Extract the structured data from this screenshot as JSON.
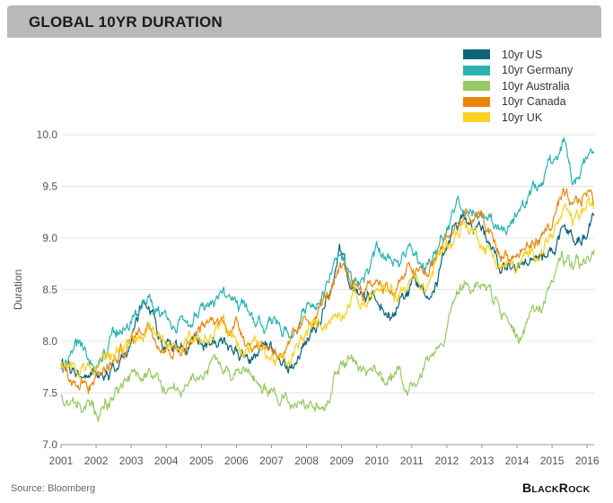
{
  "title": "GLOBAL 10YR DURATION",
  "source": "Source: Bloomberg",
  "brand": {
    "b": "B",
    "lack": "LACK",
    "r": "R",
    "ock": "OCK"
  },
  "chart_data": {
    "type": "line",
    "ylabel": "Duration",
    "xlabel": "",
    "ylim": [
      7.0,
      10.0
    ],
    "xlim": [
      2001,
      2016.2
    ],
    "yticks": [
      "7.0",
      "7.5",
      "8.0",
      "8.5",
      "9.0",
      "9.5",
      "10.0"
    ],
    "xticks": [
      "2001",
      "2002",
      "2003",
      "2004",
      "2005",
      "2006",
      "2007",
      "2008",
      "2009",
      "2010",
      "2011",
      "2012",
      "2013",
      "2014",
      "2015",
      "2016"
    ],
    "grid": "horizontal",
    "legend_position": "top-right",
    "series": [
      {
        "name": "10yr US",
        "color": "#0b6478",
        "points": [
          [
            2001,
            7.75
          ],
          [
            2001.5,
            7.65
          ],
          [
            2002,
            7.7
          ],
          [
            2002.5,
            7.8
          ],
          [
            2003,
            8.0
          ],
          [
            2003.3,
            8.3
          ],
          [
            2003.6,
            8.2
          ],
          [
            2004,
            8.0
          ],
          [
            2004.5,
            7.9
          ],
          [
            2005,
            8.0
          ],
          [
            2005.5,
            7.95
          ],
          [
            2006,
            7.9
          ],
          [
            2006.5,
            7.85
          ],
          [
            2007,
            7.8
          ],
          [
            2007.5,
            7.7
          ],
          [
            2008,
            8.0
          ],
          [
            2008.5,
            8.3
          ],
          [
            2008.95,
            8.8
          ],
          [
            2009.3,
            8.5
          ],
          [
            2009.6,
            8.4
          ],
          [
            2010,
            8.4
          ],
          [
            2010.5,
            8.3
          ],
          [
            2011,
            8.55
          ],
          [
            2011.4,
            8.55
          ],
          [
            2011.7,
            8.65
          ],
          [
            2012,
            8.9
          ],
          [
            2012.5,
            9.2
          ],
          [
            2013,
            9.1
          ],
          [
            2013.3,
            8.95
          ],
          [
            2013.5,
            8.75
          ],
          [
            2014,
            8.7
          ],
          [
            2014.5,
            8.75
          ],
          [
            2015,
            8.85
          ],
          [
            2015.3,
            9.0
          ],
          [
            2015.6,
            8.95
          ],
          [
            2016,
            9.0
          ],
          [
            2016.2,
            9.15
          ]
        ]
      },
      {
        "name": "10yr Germany",
        "color": "#2ab3b1",
        "points": [
          [
            2001,
            7.8
          ],
          [
            2001.5,
            7.9
          ],
          [
            2002,
            7.8
          ],
          [
            2002.5,
            8.0
          ],
          [
            2003,
            8.2
          ],
          [
            2003.5,
            8.4
          ],
          [
            2004,
            8.2
          ],
          [
            2004.5,
            8.15
          ],
          [
            2005,
            8.3
          ],
          [
            2005.5,
            8.5
          ],
          [
            2006,
            8.4
          ],
          [
            2006.5,
            8.2
          ],
          [
            2007,
            8.1
          ],
          [
            2007.5,
            8.05
          ],
          [
            2008,
            8.3
          ],
          [
            2008.5,
            8.5
          ],
          [
            2008.95,
            8.95
          ],
          [
            2009.3,
            8.6
          ],
          [
            2009.6,
            8.55
          ],
          [
            2010,
            8.8
          ],
          [
            2010.5,
            8.7
          ],
          [
            2011,
            8.9
          ],
          [
            2011.4,
            8.75
          ],
          [
            2011.7,
            8.9
          ],
          [
            2012,
            9.15
          ],
          [
            2012.5,
            9.35
          ],
          [
            2013,
            9.3
          ],
          [
            2013.5,
            9.05
          ],
          [
            2014,
            9.2
          ],
          [
            2014.5,
            9.45
          ],
          [
            2015,
            9.75
          ],
          [
            2015.3,
            9.95
          ],
          [
            2015.6,
            9.6
          ],
          [
            2016,
            9.8
          ],
          [
            2016.2,
            9.95
          ]
        ]
      },
      {
        "name": "10yr Australia",
        "color": "#96c965",
        "points": [
          [
            2001,
            7.5
          ],
          [
            2001.5,
            7.4
          ],
          [
            2002,
            7.3
          ],
          [
            2002.5,
            7.5
          ],
          [
            2003,
            7.6
          ],
          [
            2003.5,
            7.7
          ],
          [
            2004,
            7.55
          ],
          [
            2004.5,
            7.5
          ],
          [
            2005,
            7.7
          ],
          [
            2005.5,
            7.8
          ],
          [
            2006,
            7.7
          ],
          [
            2006.5,
            7.6
          ],
          [
            2007,
            7.55
          ],
          [
            2007.5,
            7.45
          ],
          [
            2008,
            7.4
          ],
          [
            2008.5,
            7.25
          ],
          [
            2008.95,
            7.8
          ],
          [
            2009.3,
            7.9
          ],
          [
            2009.6,
            7.7
          ],
          [
            2010,
            7.65
          ],
          [
            2010.5,
            7.6
          ],
          [
            2011,
            7.6
          ],
          [
            2011.4,
            7.75
          ],
          [
            2011.7,
            7.9
          ],
          [
            2012,
            8.2
          ],
          [
            2012.5,
            8.6
          ],
          [
            2013,
            8.5
          ],
          [
            2013.5,
            8.3
          ],
          [
            2014,
            8.05
          ],
          [
            2014.5,
            8.2
          ],
          [
            2015,
            8.6
          ],
          [
            2015.3,
            8.75
          ],
          [
            2015.6,
            8.65
          ],
          [
            2016,
            8.75
          ],
          [
            2016.2,
            8.85
          ]
        ]
      },
      {
        "name": "10yr Canada",
        "color": "#e8860e",
        "points": [
          [
            2001,
            7.7
          ],
          [
            2001.5,
            7.6
          ],
          [
            2002,
            7.65
          ],
          [
            2002.5,
            7.8
          ],
          [
            2003,
            8.0
          ],
          [
            2003.5,
            8.2
          ],
          [
            2004,
            8.0
          ],
          [
            2004.5,
            7.95
          ],
          [
            2005,
            8.1
          ],
          [
            2005.5,
            8.2
          ],
          [
            2006,
            8.15
          ],
          [
            2006.5,
            8.0
          ],
          [
            2007,
            7.95
          ],
          [
            2007.5,
            7.9
          ],
          [
            2008,
            8.15
          ],
          [
            2008.5,
            8.4
          ],
          [
            2008.95,
            8.6
          ],
          [
            2009.3,
            8.55
          ],
          [
            2009.6,
            8.5
          ],
          [
            2010,
            8.6
          ],
          [
            2010.5,
            8.5
          ],
          [
            2011,
            8.7
          ],
          [
            2011.4,
            8.6
          ],
          [
            2011.7,
            8.8
          ],
          [
            2012,
            9.0
          ],
          [
            2012.5,
            9.2
          ],
          [
            2013,
            9.15
          ],
          [
            2013.5,
            8.85
          ],
          [
            2014,
            8.85
          ],
          [
            2014.5,
            8.95
          ],
          [
            2015,
            9.15
          ],
          [
            2015.3,
            9.35
          ],
          [
            2015.6,
            9.2
          ],
          [
            2016,
            9.45
          ],
          [
            2016.2,
            9.35
          ]
        ]
      },
      {
        "name": "10yr UK",
        "color": "#fad022",
        "points": [
          [
            2001,
            7.8
          ],
          [
            2001.5,
            7.75
          ],
          [
            2002,
            7.7
          ],
          [
            2002.5,
            7.85
          ],
          [
            2003,
            8.05
          ],
          [
            2003.5,
            8.1
          ],
          [
            2004,
            7.95
          ],
          [
            2004.5,
            7.9
          ],
          [
            2005,
            8.0
          ],
          [
            2005.5,
            8.1
          ],
          [
            2006,
            8.0
          ],
          [
            2006.5,
            7.9
          ],
          [
            2007,
            7.85
          ],
          [
            2007.5,
            7.75
          ],
          [
            2008,
            8.05
          ],
          [
            2008.5,
            8.2
          ],
          [
            2008.95,
            8.3
          ],
          [
            2009.3,
            8.5
          ],
          [
            2009.6,
            8.35
          ],
          [
            2010,
            8.5
          ],
          [
            2010.5,
            8.4
          ],
          [
            2011,
            8.6
          ],
          [
            2011.4,
            8.5
          ],
          [
            2011.7,
            8.75
          ],
          [
            2012,
            8.95
          ],
          [
            2012.5,
            9.15
          ],
          [
            2013,
            9.0
          ],
          [
            2013.5,
            8.75
          ],
          [
            2014,
            8.7
          ],
          [
            2014.5,
            8.85
          ],
          [
            2015,
            9.05
          ],
          [
            2015.3,
            9.2
          ],
          [
            2015.6,
            9.1
          ],
          [
            2016,
            9.3
          ],
          [
            2016.2,
            9.25
          ]
        ]
      }
    ]
  }
}
